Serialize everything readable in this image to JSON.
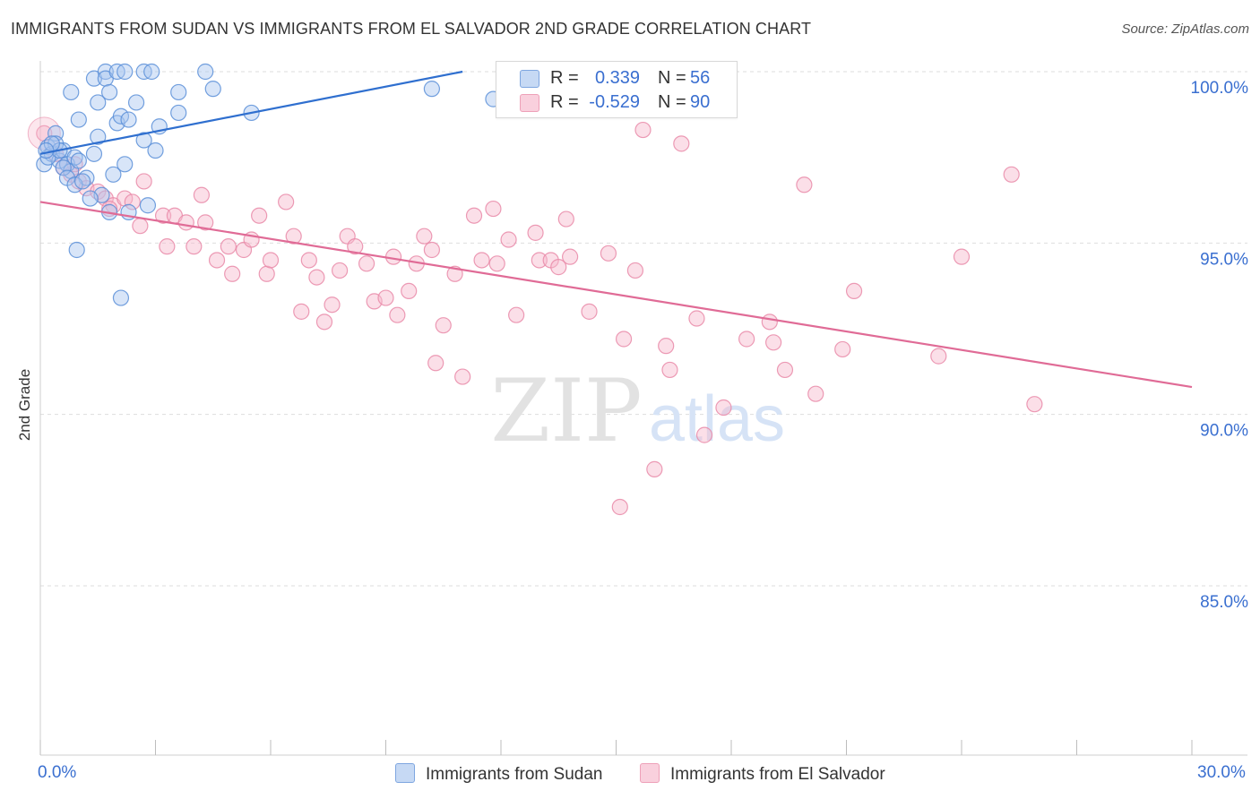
{
  "title": "IMMIGRANTS FROM SUDAN VS IMMIGRANTS FROM EL SALVADOR 2ND GRADE CORRELATION CHART",
  "source": "Source: ZipAtlas.com",
  "watermark": {
    "zip": "ZIP",
    "atlas": "atlas"
  },
  "colors": {
    "blue_fill": "#a8c6f0",
    "blue_stroke": "#5a8fd8",
    "blue_line": "#2f6fcf",
    "pink_fill": "#f6b8cc",
    "pink_stroke": "#e98aa8",
    "pink_line": "#e06b96",
    "axis_text": "#3a6fd0",
    "grid": "#dddddd"
  },
  "legend": {
    "rows": [
      {
        "r_label": "R =",
        "r_value": "0.339",
        "n_label": "N =",
        "n_value": "56"
      },
      {
        "r_label": "R =",
        "r_value": "-0.529",
        "n_label": "N =",
        "n_value": "90"
      }
    ]
  },
  "bottom_legend": {
    "sudan": "Immigrants from Sudan",
    "salvador": "Immigrants from El Salvador"
  },
  "x_labels": {
    "left": "0.0%",
    "right": "30.0%"
  },
  "chart_data": {
    "type": "scatter",
    "title": "IMMIGRANTS FROM SUDAN VS IMMIGRANTS FROM EL SALVADOR 2ND GRADE CORRELATION CHART",
    "xlabel": "",
    "ylabel": "2nd Grade",
    "xlim": [
      0,
      30
    ],
    "ylim": [
      80.5,
      100.8
    ],
    "y_ticks": [
      100,
      95,
      90,
      85
    ],
    "y_tick_labels": [
      "100.0%",
      "95.0%",
      "90.0%",
      "85.0%"
    ],
    "grid": true,
    "legend_position": "top-center",
    "series": [
      {
        "name": "Immigrants from Sudan",
        "color": "#5a8fd8",
        "trend": {
          "x": [
            0,
            11.0
          ],
          "y": [
            97.6,
            100.0
          ]
        },
        "points": [
          [
            0.1,
            97.3
          ],
          [
            0.2,
            97.8
          ],
          [
            0.3,
            97.6
          ],
          [
            0.4,
            98.2
          ],
          [
            0.5,
            97.4
          ],
          [
            0.6,
            97.7
          ],
          [
            0.7,
            97.3
          ],
          [
            0.8,
            97.1
          ],
          [
            0.9,
            97.5
          ],
          [
            1.0,
            97.4
          ],
          [
            0.8,
            99.4
          ],
          [
            1.0,
            98.6
          ],
          [
            1.2,
            96.9
          ],
          [
            1.4,
            99.8
          ],
          [
            1.5,
            99.1
          ],
          [
            1.4,
            97.6
          ],
          [
            1.5,
            98.1
          ],
          [
            1.6,
            96.4
          ],
          [
            1.7,
            100.0
          ],
          [
            1.7,
            99.8
          ],
          [
            1.8,
            95.9
          ],
          [
            1.8,
            99.4
          ],
          [
            2.0,
            100.0
          ],
          [
            1.9,
            97.0
          ],
          [
            2.0,
            98.5
          ],
          [
            2.1,
            98.7
          ],
          [
            2.2,
            100.0
          ],
          [
            2.2,
            97.3
          ],
          [
            2.1,
            93.4
          ],
          [
            2.3,
            95.9
          ],
          [
            2.3,
            98.6
          ],
          [
            2.5,
            99.1
          ],
          [
            2.7,
            98.0
          ],
          [
            2.8,
            96.1
          ],
          [
            2.7,
            100.0
          ],
          [
            2.9,
            100.0
          ],
          [
            3.0,
            97.7
          ],
          [
            3.1,
            98.4
          ],
          [
            3.6,
            98.8
          ],
          [
            3.6,
            99.4
          ],
          [
            4.3,
            100.0
          ],
          [
            4.5,
            99.5
          ],
          [
            5.5,
            98.8
          ],
          [
            10.2,
            99.5
          ],
          [
            11.8,
            99.2
          ],
          [
            0.2,
            97.5
          ],
          [
            0.4,
            97.9
          ],
          [
            0.5,
            97.7
          ],
          [
            0.6,
            97.2
          ],
          [
            0.7,
            96.9
          ],
          [
            0.9,
            96.7
          ],
          [
            1.1,
            96.8
          ],
          [
            0.95,
            94.8
          ],
          [
            1.3,
            96.3
          ],
          [
            0.3,
            97.9
          ],
          [
            0.15,
            97.7
          ]
        ]
      },
      {
        "name": "Immigrants from El Salvador",
        "color": "#e98aa8",
        "trend": {
          "x": [
            0,
            30
          ],
          "y": [
            96.2,
            90.8
          ]
        },
        "points": [
          [
            0.1,
            98.2
          ],
          [
            0.4,
            97.6
          ],
          [
            0.6,
            97.2
          ],
          [
            0.8,
            97.0
          ],
          [
            1.0,
            96.8
          ],
          [
            1.2,
            96.6
          ],
          [
            1.5,
            96.5
          ],
          [
            1.7,
            96.3
          ],
          [
            1.9,
            96.1
          ],
          [
            2.2,
            96.3
          ],
          [
            2.6,
            95.5
          ],
          [
            2.7,
            96.8
          ],
          [
            3.2,
            95.8
          ],
          [
            3.3,
            94.9
          ],
          [
            3.5,
            95.8
          ],
          [
            3.8,
            95.6
          ],
          [
            4.0,
            94.9
          ],
          [
            4.2,
            96.4
          ],
          [
            4.3,
            95.6
          ],
          [
            4.6,
            94.5
          ],
          [
            4.9,
            94.9
          ],
          [
            5.0,
            94.1
          ],
          [
            5.3,
            94.8
          ],
          [
            5.5,
            95.1
          ],
          [
            5.7,
            95.8
          ],
          [
            5.9,
            94.1
          ],
          [
            6.0,
            94.5
          ],
          [
            6.4,
            96.2
          ],
          [
            6.6,
            95.2
          ],
          [
            6.8,
            93.0
          ],
          [
            7.0,
            94.5
          ],
          [
            7.2,
            94.0
          ],
          [
            7.4,
            92.7
          ],
          [
            7.6,
            93.2
          ],
          [
            7.8,
            94.2
          ],
          [
            8.0,
            95.2
          ],
          [
            8.2,
            94.9
          ],
          [
            8.5,
            94.4
          ],
          [
            8.7,
            93.3
          ],
          [
            9.0,
            93.4
          ],
          [
            9.2,
            94.6
          ],
          [
            9.3,
            92.9
          ],
          [
            9.6,
            93.6
          ],
          [
            9.8,
            94.4
          ],
          [
            10.0,
            95.2
          ],
          [
            10.2,
            94.8
          ],
          [
            10.3,
            91.5
          ],
          [
            10.5,
            92.6
          ],
          [
            10.8,
            94.1
          ],
          [
            11.0,
            91.1
          ],
          [
            11.3,
            95.8
          ],
          [
            11.5,
            94.5
          ],
          [
            11.8,
            96.0
          ],
          [
            11.9,
            94.4
          ],
          [
            12.2,
            95.1
          ],
          [
            12.4,
            92.9
          ],
          [
            12.9,
            95.3
          ],
          [
            13.0,
            94.5
          ],
          [
            13.3,
            94.5
          ],
          [
            13.5,
            94.3
          ],
          [
            13.7,
            95.7
          ],
          [
            13.8,
            94.6
          ],
          [
            14.3,
            93.0
          ],
          [
            14.8,
            94.7
          ],
          [
            15.1,
            87.3
          ],
          [
            15.2,
            92.2
          ],
          [
            15.5,
            94.2
          ],
          [
            15.7,
            98.3
          ],
          [
            16.0,
            88.4
          ],
          [
            16.3,
            92.0
          ],
          [
            16.4,
            91.3
          ],
          [
            16.7,
            97.9
          ],
          [
            17.1,
            92.8
          ],
          [
            17.3,
            89.4
          ],
          [
            17.8,
            90.2
          ],
          [
            18.4,
            92.2
          ],
          [
            19.0,
            92.7
          ],
          [
            19.1,
            92.1
          ],
          [
            19.4,
            91.3
          ],
          [
            19.9,
            96.7
          ],
          [
            20.2,
            90.6
          ],
          [
            20.9,
            91.9
          ],
          [
            21.2,
            93.6
          ],
          [
            23.4,
            91.7
          ],
          [
            24.0,
            94.6
          ],
          [
            25.3,
            97.0
          ],
          [
            25.9,
            90.3
          ],
          [
            1.8,
            96.0
          ],
          [
            2.4,
            96.2
          ],
          [
            0.9,
            97.3
          ]
        ]
      }
    ]
  }
}
